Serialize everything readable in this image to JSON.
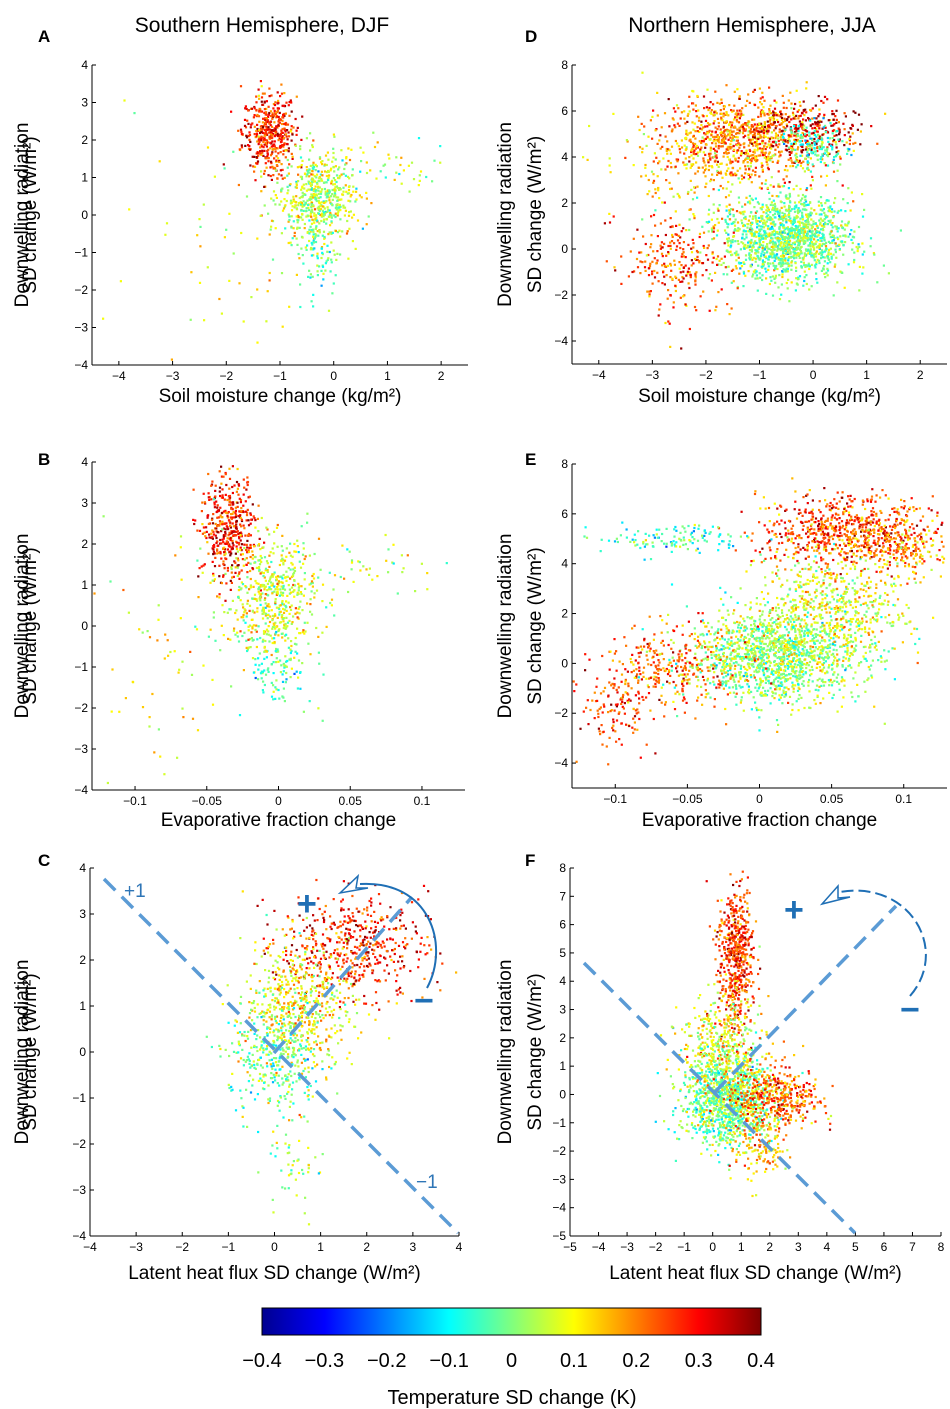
{
  "headers": {
    "left": "Southern Hemisphere, DJF",
    "right": "Northern Hemisphere, JJA"
  },
  "panels": {
    "A": "A",
    "B": "B",
    "C": "C",
    "D": "D",
    "E": "E",
    "F": "F"
  },
  "annotations": {
    "c_plus1": "+1",
    "c_minus1": "−1",
    "plus": "+",
    "minus": "−"
  },
  "colorbar": {
    "label": "Temperature SD change (K)",
    "ticks": [
      "−0.4",
      "−0.3",
      "−0.2",
      "−0.1",
      "0",
      "0.1",
      "0.2",
      "0.3",
      "0.4"
    ],
    "range": [
      -0.4,
      0.4
    ],
    "colormap": "jet"
  },
  "chart_data": [
    {
      "id": "A",
      "type": "scatter",
      "xlabel": "Soil moisture change (kg/m²)",
      "ylabel": [
        "Downwelling radiation",
        "SD change (W/m²)"
      ],
      "xlim": [
        -4.5,
        2.5
      ],
      "ylim": [
        -4,
        4
      ],
      "xticks": [
        -4,
        -3,
        -2,
        -1,
        0,
        1,
        2
      ],
      "yticks": [
        -4,
        -3,
        -2,
        -1,
        0,
        1,
        2,
        3,
        4
      ],
      "clusters": [
        {
          "x": -1.2,
          "y": 2.2,
          "sx": 0.25,
          "sy": 0.55,
          "n": 450,
          "c": 0.27
        },
        {
          "x": -0.3,
          "y": 0.4,
          "sx": 0.35,
          "sy": 0.6,
          "n": 550,
          "c": 0.05
        },
        {
          "x": -0.3,
          "y": -1.0,
          "sx": 0.2,
          "sy": 0.6,
          "n": 80,
          "c": -0.05
        },
        {
          "x": 0.8,
          "y": 1.3,
          "sx": 0.8,
          "sy": 0.4,
          "n": 60,
          "c": 0.05
        },
        {
          "x": -2.0,
          "y": -0.8,
          "sx": 0.9,
          "sy": 1.8,
          "n": 50,
          "c": 0.1
        }
      ]
    },
    {
      "id": "B",
      "type": "scatter",
      "xlabel": "Evaporative fraction change",
      "ylabel": [
        "Downwelling radiation",
        "SD change (W/m²)"
      ],
      "xlim": [
        -0.13,
        0.13
      ],
      "ylim": [
        -4,
        4
      ],
      "xticks": [
        -0.1,
        -0.05,
        0,
        0.05,
        0.1
      ],
      "yticks": [
        -4,
        -3,
        -2,
        -1,
        0,
        1,
        2,
        3,
        4
      ],
      "clusters": [
        {
          "x": -0.035,
          "y": 2.4,
          "sx": 0.01,
          "sy": 0.6,
          "n": 420,
          "c": 0.28
        },
        {
          "x": -0.005,
          "y": 0.7,
          "sx": 0.017,
          "sy": 0.75,
          "n": 550,
          "c": 0.07
        },
        {
          "x": 0.0,
          "y": -1.1,
          "sx": 0.012,
          "sy": 0.4,
          "n": 100,
          "c": -0.04
        },
        {
          "x": 0.07,
          "y": 1.4,
          "sx": 0.025,
          "sy": 0.3,
          "n": 40,
          "c": 0.05
        },
        {
          "x": -0.08,
          "y": -1.0,
          "sx": 0.02,
          "sy": 1.6,
          "n": 60,
          "c": 0.1
        }
      ]
    },
    {
      "id": "C",
      "type": "scatter",
      "xlabel": "Latent heat flux SD change (W/m²)",
      "ylabel": [
        "Downwelling radiation",
        "SD change (W/m²)"
      ],
      "xlim": [
        -4,
        4
      ],
      "ylim": [
        -4,
        4
      ],
      "xticks": [
        -4,
        -3,
        -2,
        -1,
        0,
        1,
        2,
        3,
        4
      ],
      "yticks": [
        -4,
        -3,
        -2,
        -1,
        0,
        1,
        2,
        3,
        4
      ],
      "lines": [
        {
          "x": [
            -4,
            4
          ],
          "y": [
            4,
            -4
          ],
          "label": "c_minus1"
        },
        {
          "x": 0,
          "y": 0,
          "slope": 1
        }
      ],
      "clusters": [
        {
          "x": 1.7,
          "y": 2.3,
          "sx": 0.8,
          "sy": 0.55,
          "n": 500,
          "c": 0.28
        },
        {
          "x": 0.5,
          "y": 1.0,
          "sx": 0.6,
          "sy": 0.7,
          "n": 550,
          "c": 0.1
        },
        {
          "x": 0.0,
          "y": -0.2,
          "sx": 0.5,
          "sy": 0.6,
          "n": 300,
          "c": -0.02
        },
        {
          "x": 0.4,
          "y": -2.4,
          "sx": 0.3,
          "sy": 0.7,
          "n": 50,
          "c": 0.05
        }
      ]
    },
    {
      "id": "D",
      "type": "scatter",
      "xlabel": "Soil moisture change (kg/m²)",
      "ylabel": [
        "Downwelling radiation",
        "SD change (W/m²)"
      ],
      "xlim": [
        -4.5,
        2.5
      ],
      "ylim": [
        -5,
        8
      ],
      "xticks": [
        -4,
        -3,
        -2,
        -1,
        0,
        1,
        2
      ],
      "yticks": [
        -4,
        -2,
        0,
        2,
        4,
        6,
        8
      ],
      "clusters": [
        {
          "x": -0.5,
          "y": 0.5,
          "sx": 0.6,
          "sy": 0.9,
          "n": 1400,
          "c": 0.0
        },
        {
          "x": -1.3,
          "y": 4.8,
          "sx": 0.8,
          "sy": 0.9,
          "n": 900,
          "c": 0.2
        },
        {
          "x": -0.2,
          "y": 5.2,
          "sx": 0.5,
          "sy": 0.6,
          "n": 200,
          "c": 0.35
        },
        {
          "x": -2.5,
          "y": -0.6,
          "sx": 0.5,
          "sy": 1.1,
          "n": 250,
          "c": 0.24
        },
        {
          "x": -2.0,
          "y": 3.5,
          "sx": 0.9,
          "sy": 1.2,
          "n": 200,
          "c": 0.12
        },
        {
          "x": 0.0,
          "y": 4.5,
          "sx": 0.3,
          "sy": 0.5,
          "n": 150,
          "c": -0.05
        }
      ]
    },
    {
      "id": "E",
      "type": "scatter",
      "xlabel": "Evaporative fraction change",
      "ylabel": [
        "Downwelling radiation",
        "SD change (W/m²)"
      ],
      "xlim": [
        -0.13,
        0.13
      ],
      "ylim": [
        -5,
        8
      ],
      "xticks": [
        -0.1,
        -0.05,
        0,
        0.05,
        0.1
      ],
      "yticks": [
        -4,
        -2,
        0,
        2,
        4,
        6,
        8
      ],
      "clusters": [
        {
          "x": 0.01,
          "y": 0.3,
          "sx": 0.03,
          "sy": 0.9,
          "n": 1400,
          "c": 0.02
        },
        {
          "x": 0.05,
          "y": 2.3,
          "sx": 0.025,
          "sy": 1.1,
          "n": 600,
          "c": 0.08
        },
        {
          "x": -0.06,
          "y": -0.2,
          "sx": 0.025,
          "sy": 0.8,
          "n": 300,
          "c": 0.22
        },
        {
          "x": -0.1,
          "y": -1.8,
          "sx": 0.012,
          "sy": 0.8,
          "n": 120,
          "c": 0.25
        },
        {
          "x": 0.06,
          "y": 5.3,
          "sx": 0.03,
          "sy": 0.7,
          "n": 700,
          "c": 0.25
        },
        {
          "x": -0.06,
          "y": 5.0,
          "sx": 0.025,
          "sy": 0.3,
          "n": 120,
          "c": -0.05
        },
        {
          "x": 0.1,
          "y": 4.5,
          "sx": 0.015,
          "sy": 0.6,
          "n": 150,
          "c": 0.15
        }
      ]
    },
    {
      "id": "F",
      "type": "scatter",
      "xlabel": "Latent heat flux SD change (W/m²)",
      "ylabel": [
        "Downwelling radiation",
        "SD change (W/m²)"
      ],
      "xlim": [
        -5,
        8
      ],
      "ylim": [
        -5,
        8
      ],
      "xticks": [
        -5,
        -4,
        -3,
        -2,
        -1,
        0,
        1,
        2,
        3,
        4,
        5,
        6,
        7,
        8
      ],
      "yticks": [
        -5,
        -4,
        -3,
        -2,
        -1,
        0,
        1,
        2,
        3,
        4,
        5,
        6,
        7,
        8
      ],
      "clusters": [
        {
          "x": 0.5,
          "y": -0.2,
          "sx": 0.8,
          "sy": 0.8,
          "n": 1100,
          "c": 0.0
        },
        {
          "x": 0.8,
          "y": 4.8,
          "sx": 0.3,
          "sy": 1.3,
          "n": 550,
          "c": 0.26
        },
        {
          "x": 2.2,
          "y": -0.1,
          "sx": 0.8,
          "sy": 0.55,
          "n": 450,
          "c": 0.22
        },
        {
          "x": 0.3,
          "y": 1.8,
          "sx": 0.7,
          "sy": 0.8,
          "n": 350,
          "c": 0.08
        },
        {
          "x": 1.6,
          "y": -1.9,
          "sx": 0.5,
          "sy": 0.6,
          "n": 120,
          "c": 0.15
        }
      ]
    }
  ]
}
